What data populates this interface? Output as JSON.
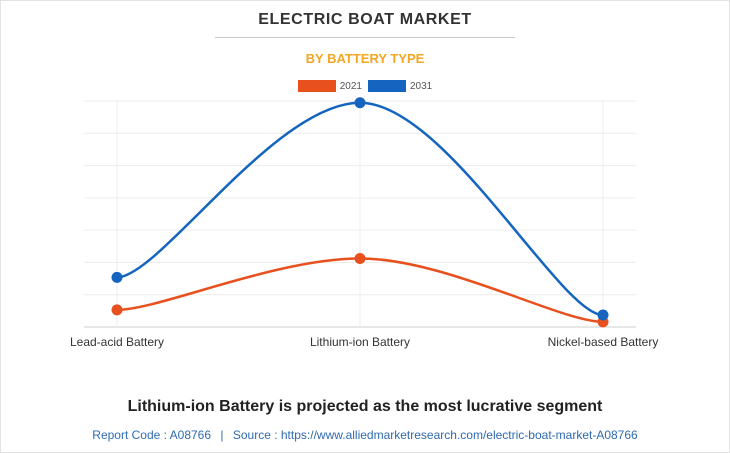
{
  "chart_data": {
    "type": "line",
    "title": "ELECTRIC BOAT MARKET",
    "subtitle": "BY BATTERY TYPE",
    "categories": [
      "Lead-acid Battery",
      "Lithium-ion Battery",
      "Nickel-based Battery"
    ],
    "series": [
      {
        "name": "2021",
        "color": "#e8501e",
        "values": [
          0.5,
          2.0,
          0.15
        ]
      },
      {
        "name": "2031",
        "color": "#1565c0",
        "values": [
          1.45,
          6.55,
          0.35
        ]
      }
    ],
    "ylim": [
      0,
      6.6
    ],
    "grid": true,
    "legend_position": "top"
  },
  "headline": "Lithium-ion Battery is projected as the most lucrative segment",
  "footer": {
    "report_code": "Report Code : A08766",
    "separator": "|",
    "source": "Source : https://www.alliedmarketresearch.com/electric-boat-market-A08766"
  }
}
